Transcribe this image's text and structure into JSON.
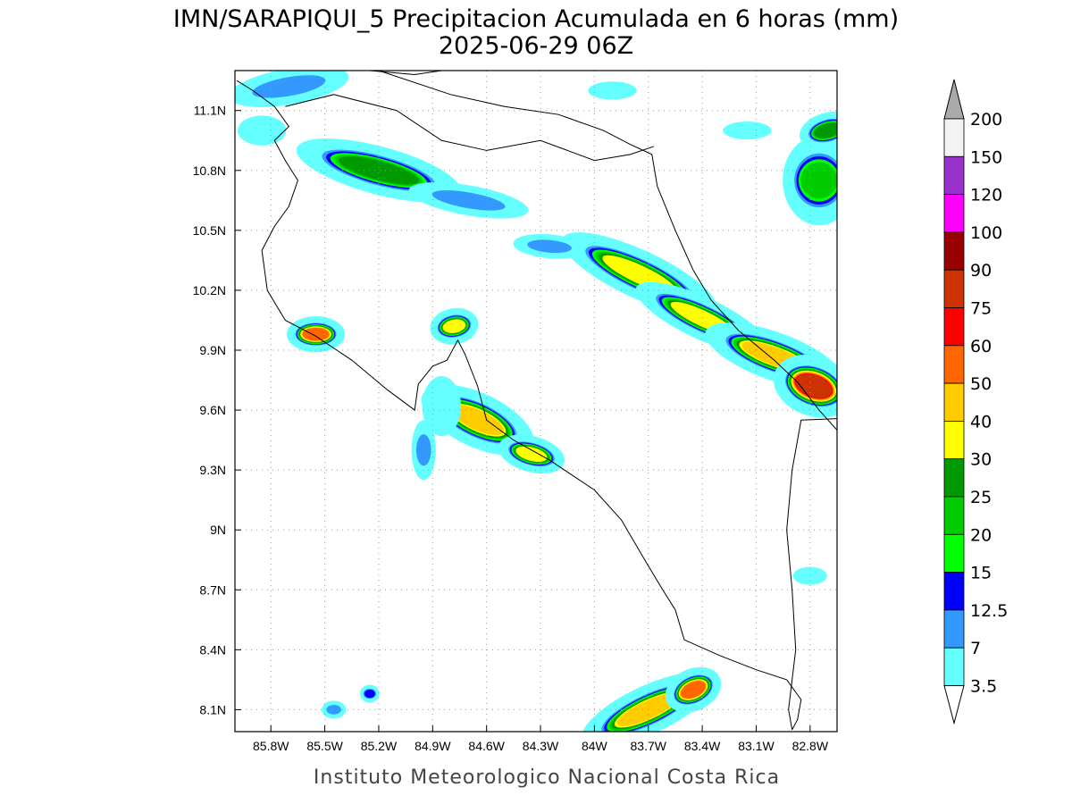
{
  "title": {
    "line1": "IMN/SARAPIQUI_5 Precipitacion Acumulada en 6 horas (mm)",
    "line2": "2025-06-29 06Z"
  },
  "credit": "Instituto Meteorologico Nacional Costa Rica",
  "map": {
    "lon_range": [
      -86.0,
      -82.65
    ],
    "lat_range": [
      7.99,
      11.3
    ],
    "x_ticks": [
      {
        "lon": -85.8,
        "label": "85.8W"
      },
      {
        "lon": -85.5,
        "label": "85.5W"
      },
      {
        "lon": -85.2,
        "label": "85.2W"
      },
      {
        "lon": -84.9,
        "label": "84.9W"
      },
      {
        "lon": -84.6,
        "label": "84.6W"
      },
      {
        "lon": -84.3,
        "label": "84.3W"
      },
      {
        "lon": -84.0,
        "label": "84W"
      },
      {
        "lon": -83.7,
        "label": "83.7W"
      },
      {
        "lon": -83.4,
        "label": "83.4W"
      },
      {
        "lon": -83.1,
        "label": "83.1W"
      },
      {
        "lon": -82.8,
        "label": "82.8W"
      }
    ],
    "y_ticks": [
      {
        "lat": 11.1,
        "label": "11.1N"
      },
      {
        "lat": 10.8,
        "label": "10.8N"
      },
      {
        "lat": 10.5,
        "label": "10.5N"
      },
      {
        "lat": 10.2,
        "label": "10.2N"
      },
      {
        "lat": 9.9,
        "label": "9.9N"
      },
      {
        "lat": 9.6,
        "label": "9.6N"
      },
      {
        "lat": 9.3,
        "label": "9.3N"
      },
      {
        "lat": 9.0,
        "label": "9N"
      },
      {
        "lat": 8.7,
        "label": "8.7N"
      },
      {
        "lat": 8.4,
        "label": "8.4N"
      },
      {
        "lat": 8.1,
        "label": "8.1N"
      }
    ],
    "grid": "dotted",
    "coastline": [
      [
        -85.99,
        11.25
      ],
      [
        -85.9,
        11.2
      ],
      [
        -85.78,
        11.12
      ],
      [
        -85.7,
        11.02
      ],
      [
        -85.78,
        10.95
      ],
      [
        -85.72,
        10.85
      ],
      [
        -85.65,
        10.75
      ],
      [
        -85.7,
        10.62
      ],
      [
        -85.78,
        10.52
      ],
      [
        -85.85,
        10.4
      ],
      [
        -85.82,
        10.2
      ],
      [
        -85.72,
        10.05
      ],
      [
        -85.55,
        9.97
      ],
      [
        -85.35,
        9.85
      ],
      [
        -85.15,
        9.7
      ],
      [
        -85.0,
        9.6
      ],
      [
        -84.98,
        9.73
      ],
      [
        -84.9,
        9.82
      ],
      [
        -84.82,
        9.85
      ],
      [
        -84.76,
        9.95
      ],
      [
        -84.72,
        9.88
      ],
      [
        -84.65,
        9.72
      ],
      [
        -84.6,
        9.55
      ],
      [
        -84.45,
        9.45
      ],
      [
        -84.25,
        9.35
      ],
      [
        -84.0,
        9.2
      ],
      [
        -83.85,
        9.05
      ],
      [
        -83.72,
        8.85
      ],
      [
        -83.62,
        8.7
      ],
      [
        -83.55,
        8.6
      ],
      [
        -83.5,
        8.45
      ],
      [
        -83.3,
        8.37
      ],
      [
        -83.1,
        8.3
      ],
      [
        -82.93,
        8.25
      ],
      [
        -82.85,
        8.15
      ],
      [
        -82.87,
        8.05
      ],
      [
        -82.9,
        8.0
      ]
    ],
    "coastline2": [
      [
        -82.65,
        9.5
      ],
      [
        -82.75,
        9.6
      ],
      [
        -82.87,
        9.74
      ],
      [
        -83.0,
        9.85
      ],
      [
        -83.2,
        10.0
      ],
      [
        -83.35,
        10.15
      ],
      [
        -83.45,
        10.3
      ],
      [
        -83.55,
        10.5
      ],
      [
        -83.65,
        10.72
      ],
      [
        -83.68,
        10.88
      ],
      [
        -83.8,
        10.93
      ],
      [
        -83.95,
        11.0
      ],
      [
        -84.2,
        11.08
      ],
      [
        -84.5,
        11.12
      ],
      [
        -84.8,
        11.18
      ],
      [
        -85.2,
        11.3
      ]
    ],
    "border_north": [
      [
        -85.72,
        11.12
      ],
      [
        -85.45,
        11.18
      ],
      [
        -85.1,
        11.1
      ],
      [
        -84.85,
        10.95
      ],
      [
        -84.6,
        10.9
      ],
      [
        -84.3,
        10.95
      ],
      [
        -84.0,
        10.85
      ],
      [
        -83.8,
        10.88
      ],
      [
        -83.67,
        10.92
      ]
    ],
    "border_south": [
      [
        -82.58,
        9.56
      ],
      [
        -82.85,
        9.55
      ],
      [
        -82.9,
        9.3
      ],
      [
        -82.93,
        9.0
      ],
      [
        -82.9,
        8.7
      ],
      [
        -82.88,
        8.4
      ],
      [
        -82.92,
        8.1
      ],
      [
        -82.9,
        8.0
      ]
    ],
    "nicoya_lake": [
      [
        -85.25,
        11.3
      ],
      [
        -85.0,
        11.28
      ],
      [
        -84.85,
        11.3
      ]
    ]
  },
  "precip_cells": [
    {
      "lon": -85.55,
      "lat": 9.98,
      "rx": 0.12,
      "ry": 0.06,
      "rot": 0,
      "mm": 55
    },
    {
      "lon": -84.78,
      "lat": 10.02,
      "rx": 0.1,
      "ry": 0.06,
      "rot": -10,
      "mm": 35
    },
    {
      "lon": -84.65,
      "lat": 9.55,
      "rx": 0.25,
      "ry": 0.09,
      "rot": 25,
      "mm": 45
    },
    {
      "lon": -84.35,
      "lat": 9.38,
      "rx": 0.14,
      "ry": 0.06,
      "rot": 15,
      "mm": 35
    },
    {
      "lon": -83.75,
      "lat": 10.28,
      "rx": 0.35,
      "ry": 0.08,
      "rot": 25,
      "mm": 30
    },
    {
      "lon": -83.4,
      "lat": 10.06,
      "rx": 0.3,
      "ry": 0.07,
      "rot": 25,
      "mm": 32
    },
    {
      "lon": -83.0,
      "lat": 9.87,
      "rx": 0.3,
      "ry": 0.08,
      "rot": 20,
      "mm": 42
    },
    {
      "lon": -82.78,
      "lat": 9.72,
      "rx": 0.17,
      "ry": 0.1,
      "rot": 20,
      "mm": 80
    },
    {
      "lon": -85.2,
      "lat": 10.8,
      "rx": 0.35,
      "ry": 0.08,
      "rot": 15,
      "mm": 28
    },
    {
      "lon": -84.7,
      "lat": 10.65,
      "rx": 0.25,
      "ry": 0.05,
      "rot": 10,
      "mm": 12
    },
    {
      "lon": -82.75,
      "lat": 10.75,
      "rx": 0.15,
      "ry": 0.15,
      "rot": 0,
      "mm": 22
    },
    {
      "lon": -82.7,
      "lat": 11.0,
      "rx": 0.12,
      "ry": 0.06,
      "rot": -15,
      "mm": 25
    },
    {
      "lon": -83.7,
      "lat": 8.1,
      "rx": 0.3,
      "ry": 0.08,
      "rot": -25,
      "mm": 48
    },
    {
      "lon": -83.45,
      "lat": 8.2,
      "rx": 0.12,
      "ry": 0.07,
      "rot": -25,
      "mm": 55
    },
    {
      "lon": -85.7,
      "lat": 11.22,
      "rx": 0.25,
      "ry": 0.06,
      "rot": -10,
      "mm": 9
    },
    {
      "lon": -85.85,
      "lat": 11.0,
      "rx": 0.1,
      "ry": 0.05,
      "rot": 0,
      "mm": 5
    },
    {
      "lon": -84.25,
      "lat": 10.42,
      "rx": 0.15,
      "ry": 0.04,
      "rot": 5,
      "mm": 8
    },
    {
      "lon": -83.9,
      "lat": 11.2,
      "rx": 0.1,
      "ry": 0.03,
      "rot": 0,
      "mm": 5
    },
    {
      "lon": -83.15,
      "lat": 11.0,
      "rx": 0.1,
      "ry": 0.03,
      "rot": 0,
      "mm": 5
    },
    {
      "lon": -85.45,
      "lat": 8.1,
      "rx": 0.05,
      "ry": 0.03,
      "rot": 0,
      "mm": 10
    },
    {
      "lon": -85.25,
      "lat": 8.18,
      "rx": 0.04,
      "ry": 0.03,
      "rot": 0,
      "mm": 14
    },
    {
      "lon": -84.95,
      "lat": 9.4,
      "rx": 0.05,
      "ry": 0.1,
      "rot": 0,
      "mm": 9
    },
    {
      "lon": -82.8,
      "lat": 8.77,
      "rx": 0.07,
      "ry": 0.03,
      "rot": 0,
      "mm": 5
    },
    {
      "lon": -84.85,
      "lat": 9.62,
      "rx": 0.08,
      "ry": 0.1,
      "rot": 0,
      "mm": 6
    }
  ],
  "colorbar": {
    "top_label": "200",
    "levels": [
      {
        "label": "150",
        "color": "#f3f3f3"
      },
      {
        "label": "120",
        "color": "#9a32cd"
      },
      {
        "label": "100",
        "color": "#ff00ff"
      },
      {
        "label": "90",
        "color": "#990000"
      },
      {
        "label": "75",
        "color": "#cc3300"
      },
      {
        "label": "60",
        "color": "#ff0000"
      },
      {
        "label": "50",
        "color": "#ff6600"
      },
      {
        "label": "40",
        "color": "#ffcc00"
      },
      {
        "label": "30",
        "color": "#ffff00"
      },
      {
        "label": "25",
        "color": "#009900"
      },
      {
        "label": "20",
        "color": "#00cc00"
      },
      {
        "label": "15",
        "color": "#00ff00"
      },
      {
        "label": "12.5",
        "color": "#0000ff"
      },
      {
        "label": "7",
        "color": "#3399ff"
      },
      {
        "label": "3.5",
        "color": "#66ffff"
      }
    ],
    "over_color": "#aaaaaa",
    "under_color": "#ffffff"
  }
}
